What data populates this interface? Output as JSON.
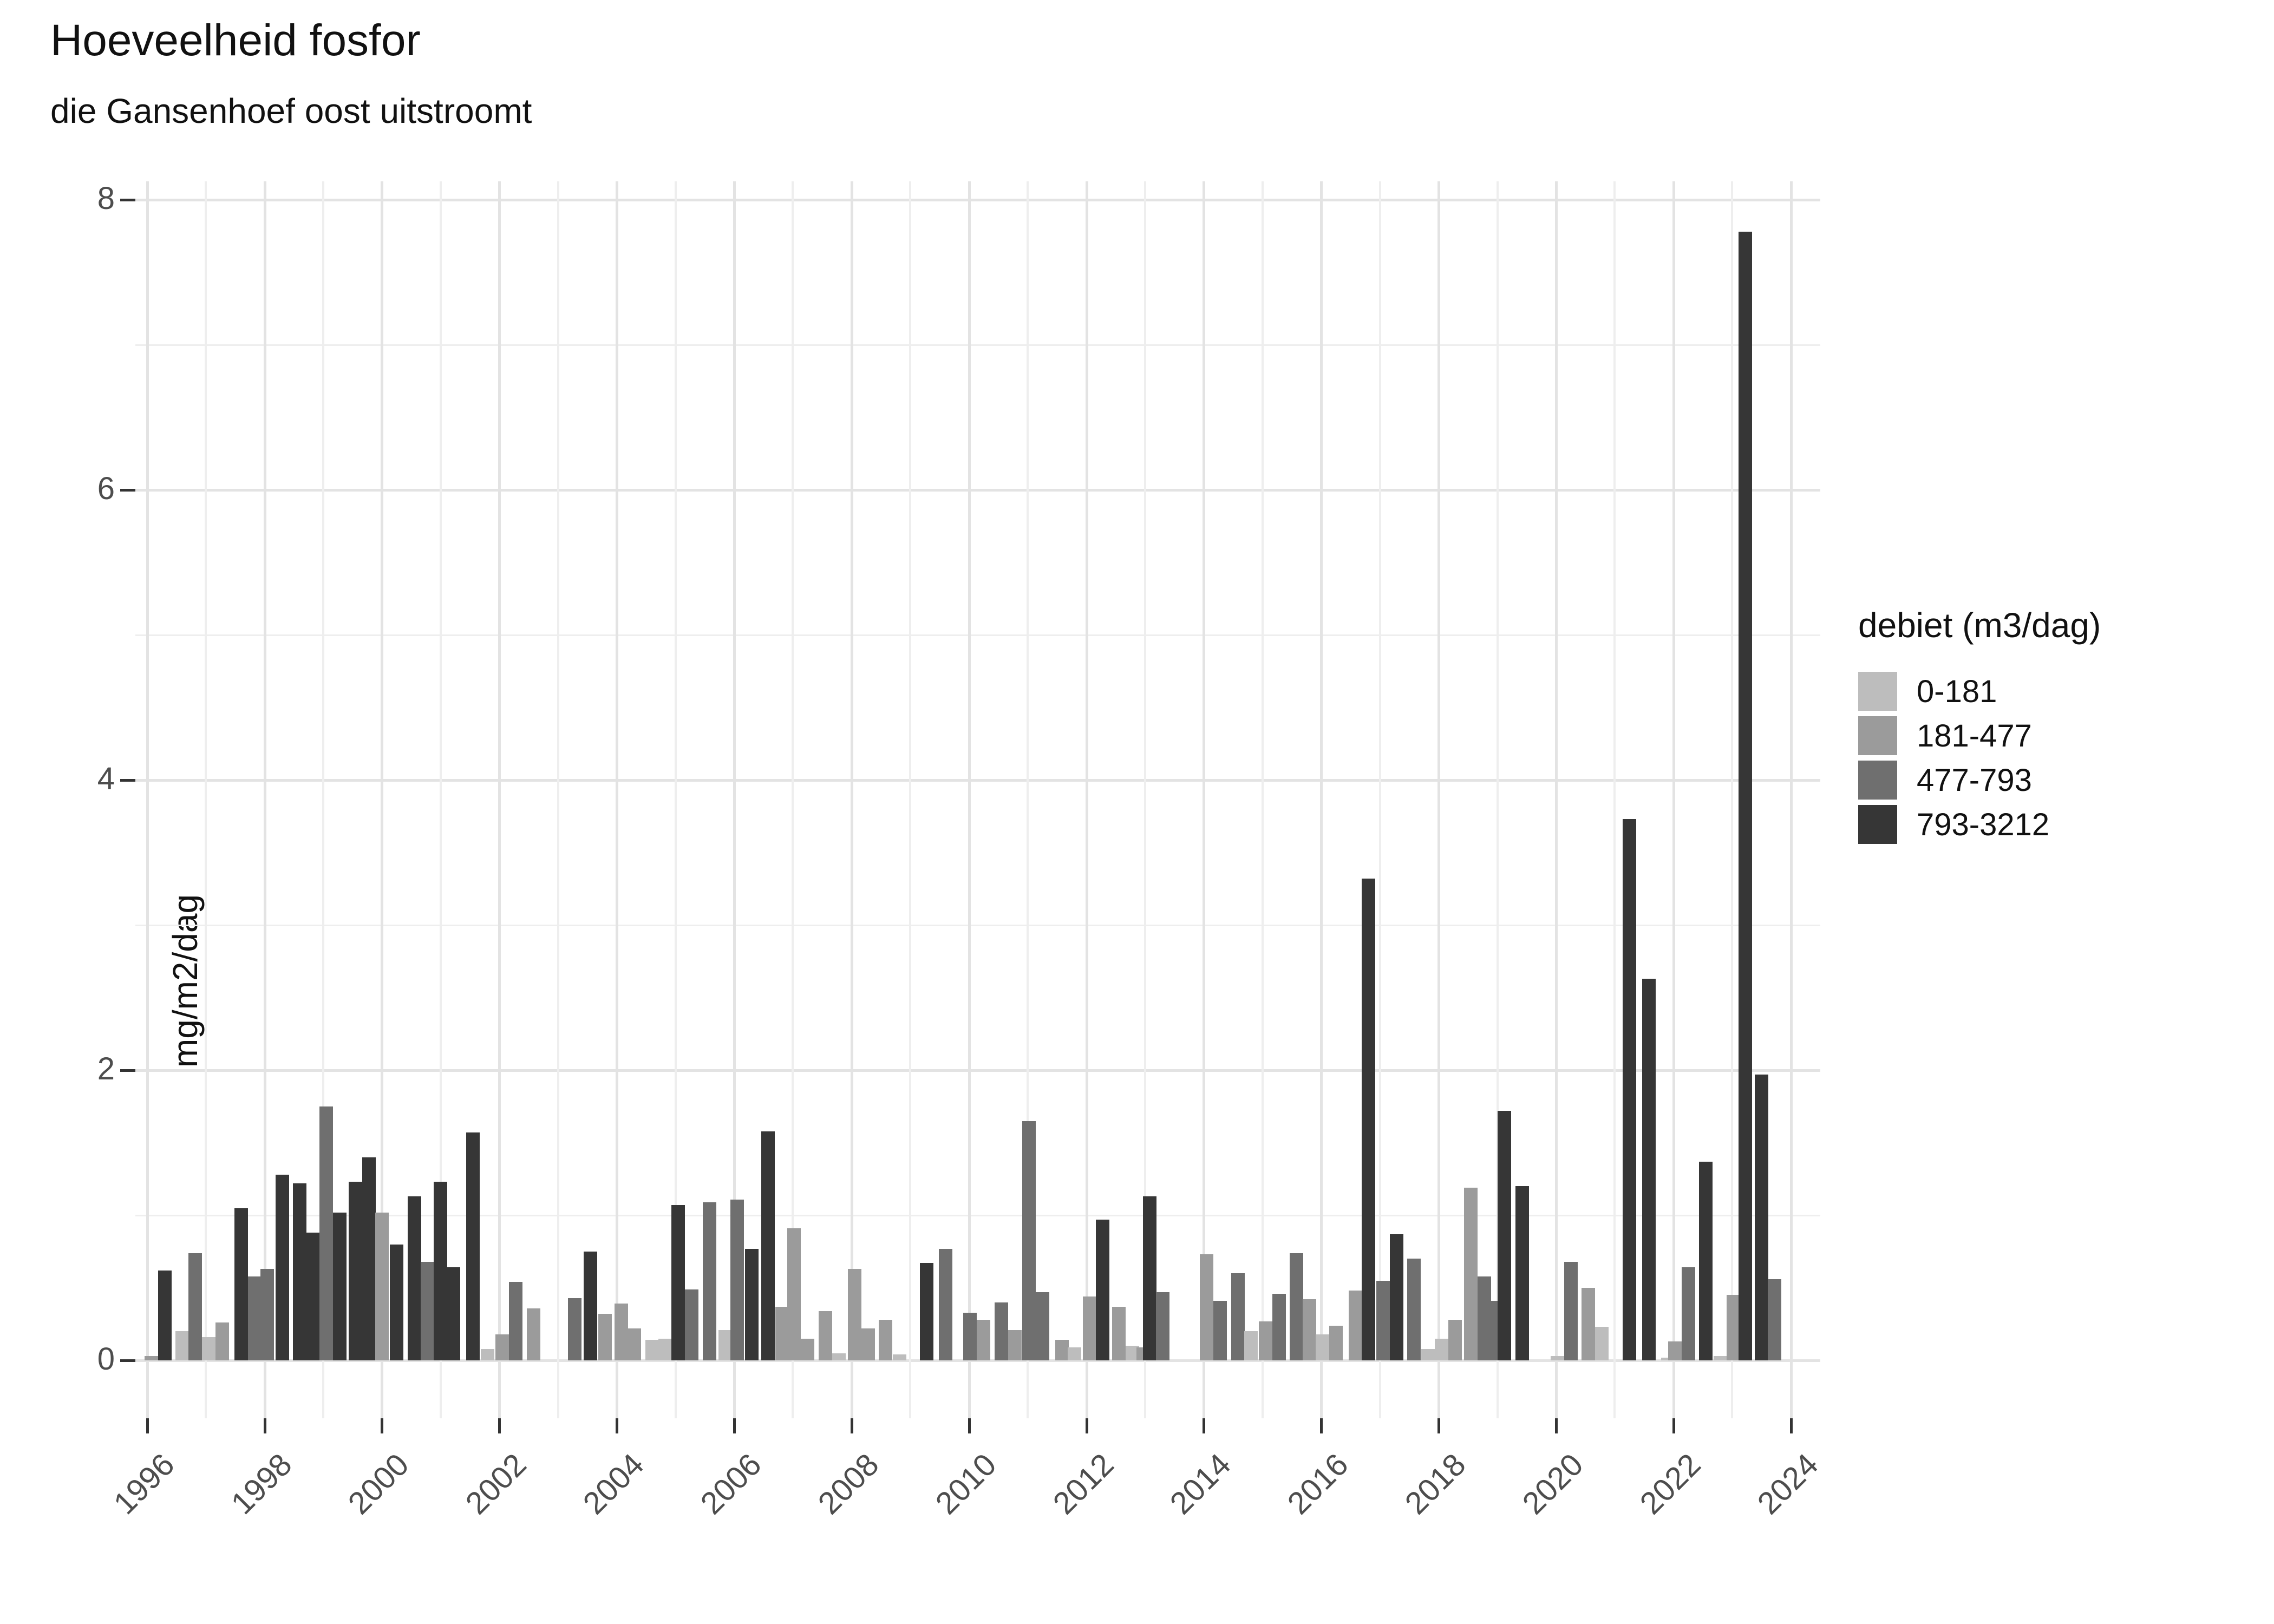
{
  "title": "Hoeveelheid fosfor",
  "subtitle": "die Gansenhoef oost uitstroomt",
  "y_axis": {
    "title": "mg/m2/dag",
    "tick_labels": [
      "0",
      "2",
      "4",
      "6",
      "8"
    ],
    "tick_values": [
      0,
      2,
      4,
      6,
      8
    ]
  },
  "x_axis": {
    "tick_labels": [
      "1996",
      "1998",
      "2000",
      "2002",
      "2004",
      "2006",
      "2008",
      "2010",
      "2012",
      "2014",
      "2016",
      "2018",
      "2020",
      "2022",
      "2024"
    ],
    "tick_values": [
      1996,
      1998,
      2000,
      2002,
      2004,
      2006,
      2008,
      2010,
      2012,
      2014,
      2016,
      2018,
      2020,
      2022,
      2024
    ]
  },
  "legend": {
    "title": "debiet (m3/dag)",
    "items": [
      {
        "label": "0-181",
        "color": "#bdbdbd"
      },
      {
        "label": "181-477",
        "color": "#9b9b9b"
      },
      {
        "label": "477-793",
        "color": "#6f6f6f"
      },
      {
        "label": "793-3212",
        "color": "#363636"
      }
    ]
  },
  "colors": {
    "grid_major": "#e3e3e3",
    "grid_minor": "#eeeeee",
    "axis_text": "#4d4d4d",
    "tick": "#333333"
  },
  "chart_data": {
    "type": "bar",
    "title": "Hoeveelheid fosfor",
    "subtitle": "die Gansenhoef oost uitstroomt",
    "xlabel": "",
    "ylabel": "mg/m2/dag",
    "ylim": [
      0,
      8.2
    ],
    "xlim": [
      1995.8,
      2024.5
    ],
    "grid": true,
    "legend_position": "right",
    "legend_title": "debiet (m3/dag)",
    "categories": [
      "0-181",
      "181-477",
      "477-793",
      "793-3212"
    ],
    "x_unit": "year (decimal = position within year)",
    "bars_format": "[x_year, value_mg_m2_dag, category_index]",
    "bars": [
      [
        1996.07,
        0.03,
        1
      ],
      [
        1996.3,
        0.62,
        3
      ],
      [
        1996.6,
        0.2,
        0
      ],
      [
        1996.82,
        0.74,
        2
      ],
      [
        1997.05,
        0.16,
        0
      ],
      [
        1997.28,
        0.26,
        1
      ],
      [
        1997.6,
        1.05,
        3
      ],
      [
        1997.83,
        0.58,
        2
      ],
      [
        1998.05,
        0.63,
        2
      ],
      [
        1998.3,
        1.28,
        3
      ],
      [
        1998.6,
        1.22,
        3
      ],
      [
        1998.83,
        0.88,
        3
      ],
      [
        1999.05,
        1.75,
        2
      ],
      [
        1999.28,
        1.02,
        3
      ],
      [
        1999.55,
        1.23,
        3
      ],
      [
        1999.78,
        1.4,
        3
      ],
      [
        2000.0,
        1.02,
        1
      ],
      [
        2000.25,
        0.8,
        3
      ],
      [
        2000.55,
        1.13,
        3
      ],
      [
        2000.78,
        0.68,
        2
      ],
      [
        2001.0,
        1.23,
        3
      ],
      [
        2001.22,
        0.64,
        3
      ],
      [
        2001.55,
        1.57,
        3
      ],
      [
        2001.8,
        0.08,
        0
      ],
      [
        2002.05,
        0.18,
        1
      ],
      [
        2002.28,
        0.54,
        2
      ],
      [
        2002.58,
        0.36,
        1
      ],
      [
        2003.28,
        0.43,
        2
      ],
      [
        2003.55,
        0.75,
        3
      ],
      [
        2003.8,
        0.32,
        1
      ],
      [
        2004.08,
        0.39,
        1
      ],
      [
        2004.3,
        0.22,
        1
      ],
      [
        2004.6,
        0.14,
        0
      ],
      [
        2004.82,
        0.15,
        0
      ],
      [
        2005.05,
        1.07,
        3
      ],
      [
        2005.28,
        0.49,
        2
      ],
      [
        2005.58,
        1.09,
        2
      ],
      [
        2005.85,
        0.21,
        0
      ],
      [
        2006.05,
        1.11,
        2
      ],
      [
        2006.3,
        0.77,
        3
      ],
      [
        2006.58,
        1.58,
        3
      ],
      [
        2006.82,
        0.37,
        1
      ],
      [
        2007.02,
        0.91,
        1
      ],
      [
        2007.25,
        0.15,
        1
      ],
      [
        2007.55,
        0.34,
        1
      ],
      [
        2007.78,
        0.05,
        0
      ],
      [
        2008.05,
        0.63,
        1
      ],
      [
        2008.28,
        0.22,
        1
      ],
      [
        2008.58,
        0.28,
        1
      ],
      [
        2008.82,
        0.04,
        0
      ],
      [
        2009.28,
        0.67,
        3
      ],
      [
        2009.6,
        0.77,
        2
      ],
      [
        2010.02,
        0.33,
        2
      ],
      [
        2010.25,
        0.28,
        1
      ],
      [
        2010.55,
        0.4,
        2
      ],
      [
        2010.78,
        0.21,
        1
      ],
      [
        2011.02,
        1.65,
        2
      ],
      [
        2011.25,
        0.47,
        2
      ],
      [
        2011.58,
        0.14,
        1
      ],
      [
        2011.8,
        0.09,
        0
      ],
      [
        2012.05,
        0.44,
        1
      ],
      [
        2012.28,
        0.97,
        3
      ],
      [
        2012.55,
        0.37,
        1
      ],
      [
        2012.78,
        0.1,
        0
      ],
      [
        2012.97,
        0.09,
        1
      ],
      [
        2013.08,
        1.13,
        3
      ],
      [
        2013.3,
        0.47,
        2
      ],
      [
        2014.05,
        0.73,
        1
      ],
      [
        2014.28,
        0.41,
        2
      ],
      [
        2014.58,
        0.6,
        2
      ],
      [
        2014.8,
        0.2,
        0
      ],
      [
        2015.05,
        0.27,
        1
      ],
      [
        2015.28,
        0.46,
        2
      ],
      [
        2015.58,
        0.74,
        2
      ],
      [
        2015.8,
        0.42,
        1
      ],
      [
        2016.02,
        0.18,
        0
      ],
      [
        2016.25,
        0.24,
        1
      ],
      [
        2016.58,
        0.48,
        1
      ],
      [
        2016.8,
        3.32,
        3
      ],
      [
        2017.05,
        0.55,
        2
      ],
      [
        2017.28,
        0.87,
        3
      ],
      [
        2017.58,
        0.7,
        2
      ],
      [
        2017.82,
        0.08,
        0
      ],
      [
        2018.05,
        0.15,
        0
      ],
      [
        2018.28,
        0.28,
        1
      ],
      [
        2018.55,
        1.19,
        1
      ],
      [
        2018.78,
        0.58,
        2
      ],
      [
        2018.97,
        0.41,
        2
      ],
      [
        2019.12,
        1.72,
        3
      ],
      [
        2019.42,
        1.2,
        3
      ],
      [
        2020.02,
        0.03,
        0
      ],
      [
        2020.25,
        0.68,
        2
      ],
      [
        2020.55,
        0.5,
        1
      ],
      [
        2020.78,
        0.23,
        0
      ],
      [
        2021.25,
        3.73,
        3
      ],
      [
        2021.58,
        2.63,
        3
      ],
      [
        2021.9,
        0.02,
        0
      ],
      [
        2022.02,
        0.13,
        1
      ],
      [
        2022.25,
        0.64,
        2
      ],
      [
        2022.55,
        1.37,
        3
      ],
      [
        2022.8,
        0.03,
        0
      ],
      [
        2023.02,
        0.45,
        1
      ],
      [
        2023.22,
        7.78,
        3
      ],
      [
        2023.5,
        1.97,
        3
      ],
      [
        2023.72,
        0.56,
        2
      ]
    ]
  }
}
